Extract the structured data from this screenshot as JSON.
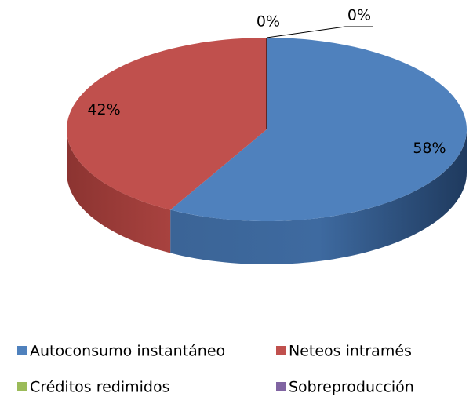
{
  "chart_data": {
    "type": "pie3d",
    "categories": [
      "Autoconsumo instantáneo",
      "Neteos intramés",
      "Créditos redimidos",
      "Sobreproducción"
    ],
    "values": [
      58,
      42,
      0,
      0
    ],
    "value_labels": [
      "58%",
      "42%",
      "0%",
      "0%"
    ],
    "colors": [
      "#4f81bd",
      "#c0504d",
      "#9bbb59",
      "#8064a2"
    ],
    "legend": "bottom"
  }
}
